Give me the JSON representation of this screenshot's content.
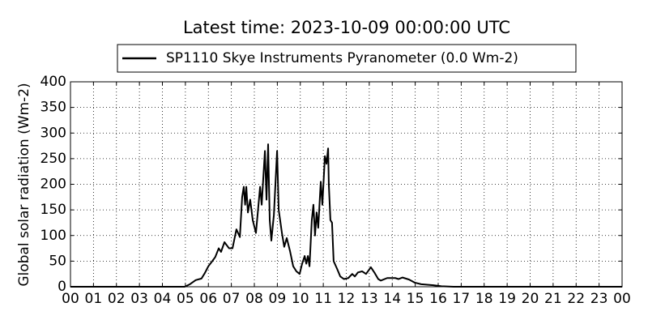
{
  "chart_data": {
    "type": "line",
    "title": "Latest time: 2023-10-09 00:00:00 UTC",
    "y_label": "Global solar radiation (Wm-2)",
    "x": [
      0,
      4.97,
      5.2,
      5.45,
      5.7,
      5.85,
      6.0,
      6.17,
      6.3,
      6.45,
      6.55,
      6.7,
      6.9,
      7.05,
      7.22,
      7.37,
      7.47,
      7.54,
      7.6,
      7.65,
      7.72,
      7.82,
      7.93,
      8.07,
      8.18,
      8.25,
      8.32,
      8.46,
      8.53,
      8.6,
      8.67,
      8.74,
      8.85,
      8.99,
      9.06,
      9.2,
      9.3,
      9.41,
      9.55,
      9.69,
      9.83,
      9.97,
      10.08,
      10.19,
      10.26,
      10.33,
      10.4,
      10.5,
      10.57,
      10.64,
      10.71,
      10.78,
      10.89,
      10.96,
      11.07,
      11.14,
      11.21,
      11.24,
      11.31,
      11.38,
      11.45,
      11.6,
      11.74,
      11.9,
      12.09,
      12.26,
      12.37,
      12.51,
      12.69,
      12.86,
      13.07,
      13.22,
      13.39,
      13.5,
      13.78,
      14.13,
      14.27,
      14.45,
      14.73,
      14.98,
      15.26,
      15.79,
      16.14,
      16.67,
      24
    ],
    "series": [
      {
        "name": "SP1110 Skye Instruments Pyranometer (0.0 Wm-2)",
        "color": "#000000",
        "values": [
          0,
          0,
          5,
          13,
          16,
          27,
          40,
          50,
          58,
          75,
          68,
          87,
          75,
          75,
          112,
          97,
          175,
          195,
          160,
          195,
          145,
          170,
          130,
          105,
          160,
          195,
          160,
          265,
          170,
          278,
          130,
          90,
          140,
          265,
          150,
          105,
          78,
          95,
          70,
          40,
          30,
          25,
          45,
          60,
          45,
          60,
          40,
          130,
          160,
          100,
          145,
          115,
          205,
          160,
          255,
          240,
          270,
          200,
          130,
          125,
          50,
          35,
          20,
          15,
          17,
          25,
          20,
          28,
          30,
          25,
          38,
          28,
          15,
          12,
          17,
          17,
          15,
          18,
          14,
          8,
          5,
          3,
          1,
          0,
          0
        ]
      }
    ],
    "xlim": [
      0,
      24
    ],
    "xticks": [
      {
        "value": 0,
        "label": "00"
      },
      {
        "value": 1,
        "label": "01"
      },
      {
        "value": 2,
        "label": "02"
      },
      {
        "value": 3,
        "label": "03"
      },
      {
        "value": 4,
        "label": "04"
      },
      {
        "value": 5,
        "label": "05"
      },
      {
        "value": 6,
        "label": "06"
      },
      {
        "value": 7,
        "label": "07"
      },
      {
        "value": 8,
        "label": "08"
      },
      {
        "value": 9,
        "label": "09"
      },
      {
        "value": 10,
        "label": "10"
      },
      {
        "value": 11,
        "label": "11"
      },
      {
        "value": 12,
        "label": "12"
      },
      {
        "value": 13,
        "label": "13"
      },
      {
        "value": 14,
        "label": "14"
      },
      {
        "value": 15,
        "label": "15"
      },
      {
        "value": 16,
        "label": "16"
      },
      {
        "value": 17,
        "label": "17"
      },
      {
        "value": 18,
        "label": "18"
      },
      {
        "value": 19,
        "label": "19"
      },
      {
        "value": 20,
        "label": "20"
      },
      {
        "value": 21,
        "label": "21"
      },
      {
        "value": 22,
        "label": "22"
      },
      {
        "value": 23,
        "label": "23"
      },
      {
        "value": 24,
        "label": "00"
      }
    ],
    "ylim": [
      0,
      400
    ],
    "yticks": [
      0,
      50,
      100,
      150,
      200,
      250,
      300,
      350,
      400
    ],
    "grid": true,
    "legend": "top"
  }
}
